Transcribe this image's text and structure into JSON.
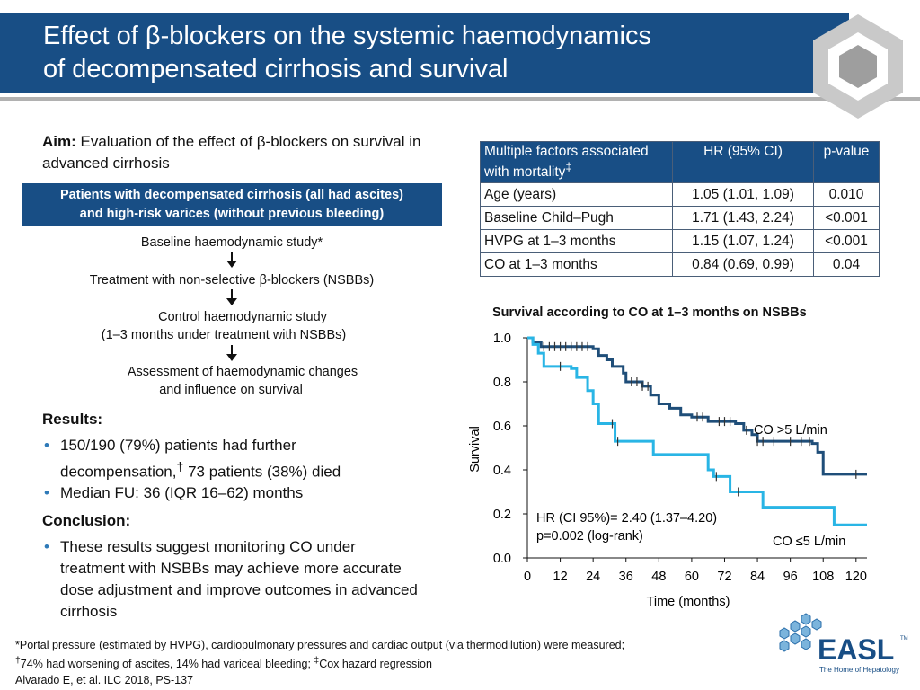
{
  "header": {
    "title_line1": "Effect of β-blockers on the systemic haemodynamics",
    "title_line2": "of decompensated cirrhosis and survival"
  },
  "aim": {
    "label": "Aim:",
    "text": "Evaluation of the effect of β-blockers on survival in advanced cirrhosis"
  },
  "study_box": {
    "line1": "Patients with decompensated cirrhosis (all had ascites)",
    "line2": "and high-risk varices (without previous bleeding)"
  },
  "flow": {
    "step1": "Baseline haemodynamic study*",
    "step2": "Treatment with non-selective β-blockers (NSBBs)",
    "step3_line1": "Control haemodynamic study",
    "step3_line2": "(1–3 months under treatment with NSBBs)",
    "step4_line1": "Assessment of haemodynamic changes",
    "step4_line2": "and influence on survival"
  },
  "results": {
    "heading": "Results:",
    "bullet1_a": "150/190 (79%) patients had further",
    "bullet1_b": "decompensation,",
    "bullet1_sup": "†",
    "bullet1_c": " 73 patients (38%) died",
    "bullet2": "Median FU: 36 (IQR 16–62) months"
  },
  "conclusion": {
    "heading": "Conclusion:",
    "bullet1": "These results suggest monitoring CO under treatment with NSBBs may achieve more accurate dose adjustment and improve outcomes in advanced cirrhosis"
  },
  "table": {
    "headers": [
      "Multiple factors associated with mortality",
      "HR (95% CI)",
      "p-value"
    ],
    "header_sup": "‡",
    "rows": [
      [
        "Age (years)",
        "1.05 (1.01, 1.09)",
        "0.010"
      ],
      [
        "Baseline Child–Pugh",
        "1.71 (1.43, 2.24)",
        "<0.001"
      ],
      [
        "HVPG at 1–3 months",
        "1.15 (1.07, 1.24)",
        "<0.001"
      ],
      [
        "CO at 1–3 months",
        "0.84 (0.69, 0.99)",
        "0.04"
      ]
    ]
  },
  "chart_data": {
    "type": "line",
    "title": "Survival according to CO at 1–3 months on NSBBs",
    "xlabel": "Time (months)",
    "ylabel": "Survival",
    "xlim": [
      0,
      124
    ],
    "ylim": [
      0,
      1.0
    ],
    "x_ticks": [
      "0",
      "12",
      "24",
      "36",
      "48",
      "60",
      "72",
      "84",
      "96",
      "108",
      "120"
    ],
    "y_ticks": [
      "0.0",
      "0.2",
      "0.4",
      "0.6",
      "0.8",
      "1.0"
    ],
    "series": [
      {
        "name": "CO >5 L/min",
        "color": "#1f4e79",
        "step_points": [
          [
            0,
            1.0
          ],
          [
            2,
            0.98
          ],
          [
            5,
            0.96
          ],
          [
            24,
            0.95
          ],
          [
            26,
            0.92
          ],
          [
            29,
            0.9
          ],
          [
            31,
            0.87
          ],
          [
            35,
            0.84
          ],
          [
            36,
            0.8
          ],
          [
            42,
            0.78
          ],
          [
            45,
            0.74
          ],
          [
            48,
            0.7
          ],
          [
            52,
            0.68
          ],
          [
            56,
            0.65
          ],
          [
            60,
            0.64
          ],
          [
            66,
            0.62
          ],
          [
            76,
            0.61
          ],
          [
            79,
            0.58
          ],
          [
            82,
            0.56
          ],
          [
            84,
            0.53
          ],
          [
            104,
            0.52
          ],
          [
            106,
            0.48
          ],
          [
            108,
            0.38
          ],
          [
            124,
            0.38
          ]
        ],
        "censor": [
          6,
          8,
          10,
          12,
          14,
          16,
          18,
          20,
          22,
          38,
          40,
          42,
          44,
          62,
          64,
          70,
          72,
          74,
          80,
          84,
          86,
          90,
          96,
          100,
          103,
          120
        ]
      },
      {
        "name": "CO ≤5 L/min",
        "color": "#29b5e5",
        "step_points": [
          [
            0,
            1.0
          ],
          [
            2,
            0.97
          ],
          [
            4,
            0.93
          ],
          [
            6,
            0.87
          ],
          [
            16,
            0.86
          ],
          [
            18,
            0.82
          ],
          [
            22,
            0.76
          ],
          [
            24,
            0.7
          ],
          [
            26,
            0.61
          ],
          [
            32,
            0.53
          ],
          [
            46,
            0.47
          ],
          [
            64,
            0.47
          ],
          [
            66,
            0.4
          ],
          [
            68,
            0.37
          ],
          [
            74,
            0.3
          ],
          [
            86,
            0.23
          ],
          [
            108,
            0.23
          ],
          [
            112,
            0.15
          ],
          [
            124,
            0.15
          ]
        ],
        "censor": [
          12,
          31,
          33,
          69,
          77
        ]
      }
    ],
    "annotations": {
      "hr_line1": "HR (CI 95%)= 2.40 (1.37–4.20)",
      "hr_line2": "p=0.002 (log-rank)",
      "label_high": "CO >5 L/min",
      "label_low": "CO ≤5 L/min"
    }
  },
  "footer": {
    "line1": "*Portal pressure (estimated by HVPG), cardiopulmonary pressures and cardiac output (via thermodilution) were measured;",
    "line2_sup1": "†",
    "line2_a": "74% had worsening of ascites, 14% had variceal bleeding; ",
    "line2_sup2": "‡",
    "line2_b": "Cox hazard regression",
    "line3": "Alvarado E, et al. ILC 2018, PS-137"
  },
  "logo": {
    "name": "EASL",
    "tm": "TM",
    "tagline": "The Home of Hepatology"
  },
  "colors": {
    "brand_blue": "#184e85",
    "accent_cyan": "#29b5e5"
  }
}
